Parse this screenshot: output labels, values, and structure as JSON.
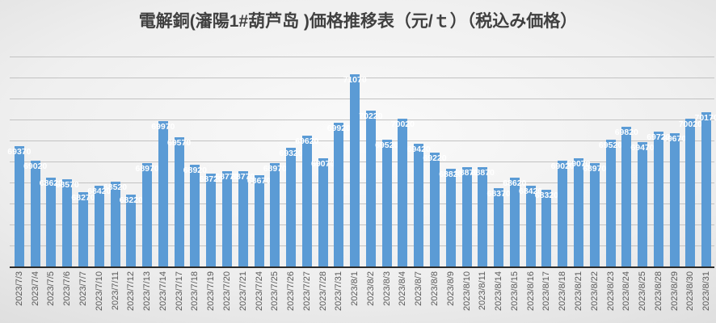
{
  "title": "電解銅(瀋陽1#葫芦岛 )価格推移表（元/ｔ）（税込み価格）",
  "colors": {
    "bar": "#5B9BD5",
    "bar_value_label": "#FFFFFF",
    "gridline": "#c2c2c2",
    "axis_line": "#2b2b2b",
    "title_text": "#404040",
    "tick_text": "#595959",
    "background_center": "#fafafa",
    "background_edge": "#c3c3c3"
  },
  "chart_data": {
    "type": "bar",
    "title": "電解銅(瀋陽1#葫芦岛 )価格推移表（元/ｔ）（税込み価格）",
    "xlabel": "",
    "ylabel": "",
    "ylim": [
      66500,
      71500
    ],
    "gridline_step": 500,
    "grid": true,
    "legend": false,
    "data_labels": "white, bold, at inside-end of each bar",
    "x_tick_rotation": -90,
    "categories": [
      "2023/7/3",
      "2023/7/4",
      "2023/7/5",
      "2023/7/6",
      "2023/7/7",
      "2023/7/10",
      "2023/7/11",
      "2023/7/12",
      "2023/7/13",
      "2023/7/14",
      "2023/7/17",
      "2023/7/18",
      "2023/7/19",
      "2023/7/20",
      "2023/7/21",
      "2023/7/24",
      "2023/7/25",
      "2023/7/26",
      "2023/7/27",
      "2023/7/28",
      "2023/7/31",
      "2023/8/1",
      "2023/8/2",
      "2023/8/3",
      "2023/8/4",
      "2023/8/7",
      "2023/8/8",
      "2023/8/9",
      "2023/8/10",
      "2023/8/11",
      "2023/8/14",
      "2023/8/15",
      "2023/8/16",
      "2023/8/17",
      "2023/8/18",
      "2023/8/21",
      "2023/8/22",
      "2023/8/23",
      "2023/8/24",
      "2023/8/25",
      "2023/8/28",
      "2023/8/29",
      "2023/8/30",
      "2023/8/31"
    ],
    "values": [
      69370,
      69020,
      68620,
      68570,
      68270,
      68420,
      68520,
      68220,
      68970,
      69970,
      69570,
      68920,
      68720,
      68770,
      68770,
      68670,
      68970,
      69320,
      69620,
      69070,
      69920,
      71070,
      70220,
      69520,
      70020,
      69420,
      69220,
      68820,
      68870,
      68870,
      68370,
      68620,
      68420,
      68320,
      69020,
      69070,
      68970,
      69520,
      69820,
      69470,
      69720,
      69670,
      70020,
      70170
    ]
  }
}
